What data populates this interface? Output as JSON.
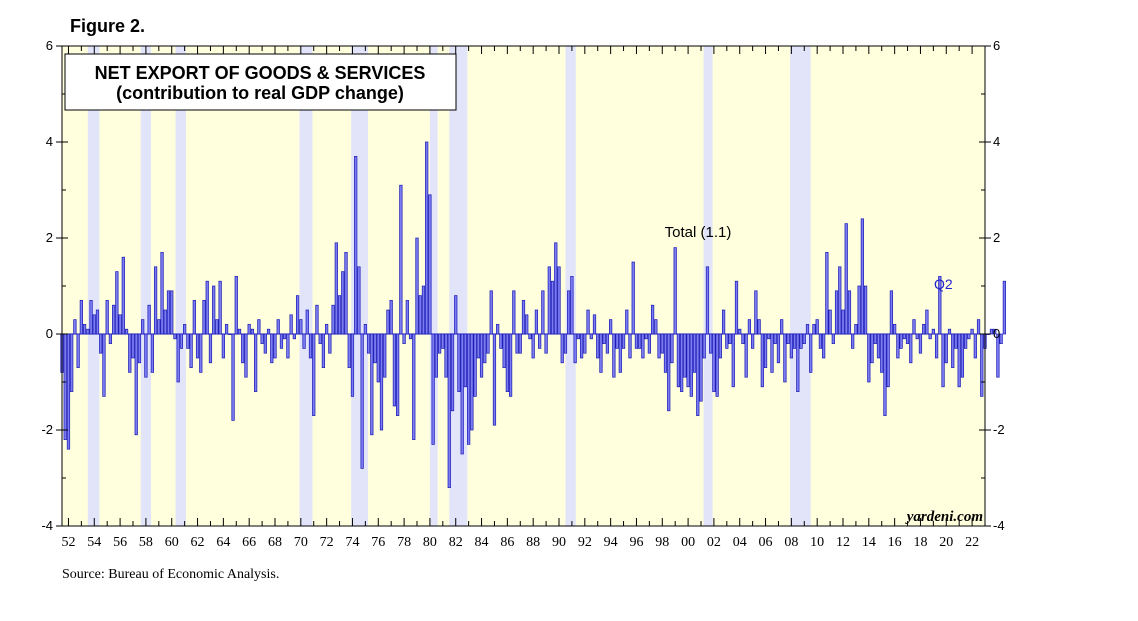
{
  "figure_label": "Figure 2.",
  "source": "Source: Bureau of Economic Analysis.",
  "colors": {
    "plot_bg": "#ffffdd",
    "recession": "#e2e4fa",
    "bar_fill": "#7b7bf2",
    "bar_stroke": "#1a1ab4",
    "zero_line": "#0000cc"
  },
  "chart_data": {
    "type": "bar",
    "title": "NET EXPORT OF GOODS & SERVICES",
    "subtitle": "(contribution to real GDP change)",
    "ylim": [
      -4,
      6
    ],
    "y_ticks": [
      -4,
      -2,
      0,
      2,
      4,
      6
    ],
    "x_range": [
      1951.5,
      2023.0
    ],
    "x_tick_labels": [
      "52",
      "54",
      "56",
      "58",
      "60",
      "62",
      "64",
      "66",
      "68",
      "70",
      "72",
      "74",
      "76",
      "78",
      "80",
      "82",
      "84",
      "86",
      "88",
      "90",
      "92",
      "94",
      "96",
      "98",
      "00",
      "02",
      "04",
      "06",
      "08",
      "10",
      "12",
      "14",
      "16",
      "18",
      "20",
      "22"
    ],
    "grid": false,
    "annotations": {
      "total_label": "Total (1.1)",
      "latest_label": "Q2",
      "brand": "yardeni.com"
    },
    "recessions": [
      [
        1953.5,
        1954.4
      ],
      [
        1957.6,
        1958.4
      ],
      [
        1960.3,
        1961.1
      ],
      [
        1969.9,
        1970.9
      ],
      [
        1973.9,
        1975.2
      ],
      [
        1980.0,
        1980.6
      ],
      [
        1981.5,
        1982.9
      ],
      [
        1990.5,
        1991.3
      ],
      [
        2001.2,
        2001.9
      ],
      [
        2007.9,
        2009.5
      ]
    ],
    "series": [
      {
        "name": "Net exports contribution",
        "start": 1951.5,
        "step": 0.25,
        "values": [
          -0.8,
          -2.2,
          -2.4,
          -1.2,
          0.3,
          -0.7,
          0.7,
          0.2,
          0.1,
          0.7,
          0.4,
          0.5,
          -0.4,
          -1.3,
          0.7,
          -0.2,
          0.6,
          1.3,
          0.4,
          1.6,
          0.1,
          -0.8,
          -0.5,
          -2.1,
          -0.6,
          0.3,
          -0.9,
          0.6,
          -0.8,
          1.4,
          0.3,
          1.7,
          0.5,
          0.9,
          0.9,
          -0.1,
          -1.0,
          -0.3,
          0.2,
          -0.3,
          -0.7,
          0.7,
          -0.5,
          -0.8,
          0.7,
          1.1,
          -0.6,
          1.0,
          0.3,
          1.1,
          -0.5,
          0.2,
          0.0,
          -1.8,
          1.2,
          0.1,
          -0.6,
          -0.9,
          0.2,
          0.1,
          -1.2,
          0.3,
          -0.2,
          -0.4,
          0.1,
          -0.6,
          -0.5,
          0.3,
          -0.3,
          -0.1,
          -0.5,
          0.4,
          -0.1,
          0.8,
          0.3,
          -0.3,
          0.5,
          -0.5,
          -1.7,
          0.6,
          -0.2,
          -0.7,
          0.2,
          -0.4,
          0.6,
          1.9,
          0.8,
          1.3,
          1.7,
          -0.7,
          -1.3,
          3.7,
          1.4,
          -2.8,
          0.2,
          -0.4,
          -2.1,
          -0.6,
          -1.0,
          -2.0,
          -0.9,
          0.5,
          0.7,
          -1.5,
          -1.7,
          3.1,
          -0.2,
          0.7,
          -0.1,
          -2.2,
          2.0,
          0.8,
          1.0,
          4.0,
          2.9,
          -2.3,
          -0.9,
          -0.4,
          -0.3,
          -0.9,
          -3.2,
          -1.6,
          0.8,
          -1.2,
          -2.5,
          -1.1,
          -2.3,
          -2.0,
          -1.3,
          -0.5,
          -0.9,
          -0.6,
          -0.4,
          0.9,
          -1.9,
          0.2,
          -0.3,
          -0.7,
          -1.2,
          -1.3,
          0.9,
          -0.4,
          -0.4,
          0.7,
          0.4,
          -0.1,
          -0.5,
          0.5,
          -0.3,
          0.9,
          -0.4,
          1.4,
          1.1,
          1.9,
          1.4,
          -0.6,
          -0.4,
          0.9,
          1.2,
          -0.6,
          -0.1,
          -0.5,
          -0.4,
          0.5,
          -0.1,
          0.4,
          -0.5,
          -0.8,
          -0.2,
          -0.4,
          0.3,
          -0.9,
          -0.3,
          -0.8,
          -0.3,
          0.5,
          -0.5,
          1.5,
          -0.3,
          -0.3,
          -0.5,
          -0.1,
          -0.4,
          0.6,
          0.3,
          -0.5,
          -0.4,
          -0.8,
          -1.6,
          -0.6,
          1.8,
          -1.1,
          -1.2,
          -0.9,
          -1.1,
          -1.3,
          -0.8,
          -1.7,
          -1.4,
          -0.5,
          1.4,
          -0.4,
          -1.2,
          -1.3,
          -0.5,
          0.5,
          -0.3,
          -0.2,
          -1.1,
          1.1,
          0.1,
          -0.2,
          -0.9,
          0.3,
          -0.3,
          0.9,
          0.3,
          -1.1,
          -0.7,
          -0.1,
          -0.8,
          -0.2,
          -0.6,
          0.3,
          -1.0,
          -0.2,
          -0.5,
          -0.3,
          -1.2,
          -0.3,
          -0.2,
          0.2,
          -0.8,
          0.2,
          0.3,
          -0.3,
          -0.5,
          1.7,
          0.5,
          -0.2,
          0.9,
          1.4,
          0.5,
          2.3,
          0.9,
          -0.3,
          0.2,
          1.0,
          2.4,
          1.0,
          -1.0,
          -0.6,
          -0.2,
          -0.5,
          -0.8,
          -1.7,
          -1.1,
          0.9,
          0.2,
          -0.5,
          -0.3,
          -0.1,
          -0.2,
          -0.6,
          0.3,
          -0.1,
          -0.4,
          0.2,
          0.5,
          -0.1,
          0.1,
          -0.5,
          1.2,
          -1.1,
          -0.6,
          0.1,
          -0.7,
          -0.3,
          -1.1,
          -0.9,
          -0.3,
          -0.1,
          0.1,
          -0.5,
          0.3,
          -1.3,
          -0.3,
          0.0,
          0.1,
          0.1,
          -0.9,
          -0.2,
          1.1
        ]
      }
    ]
  }
}
